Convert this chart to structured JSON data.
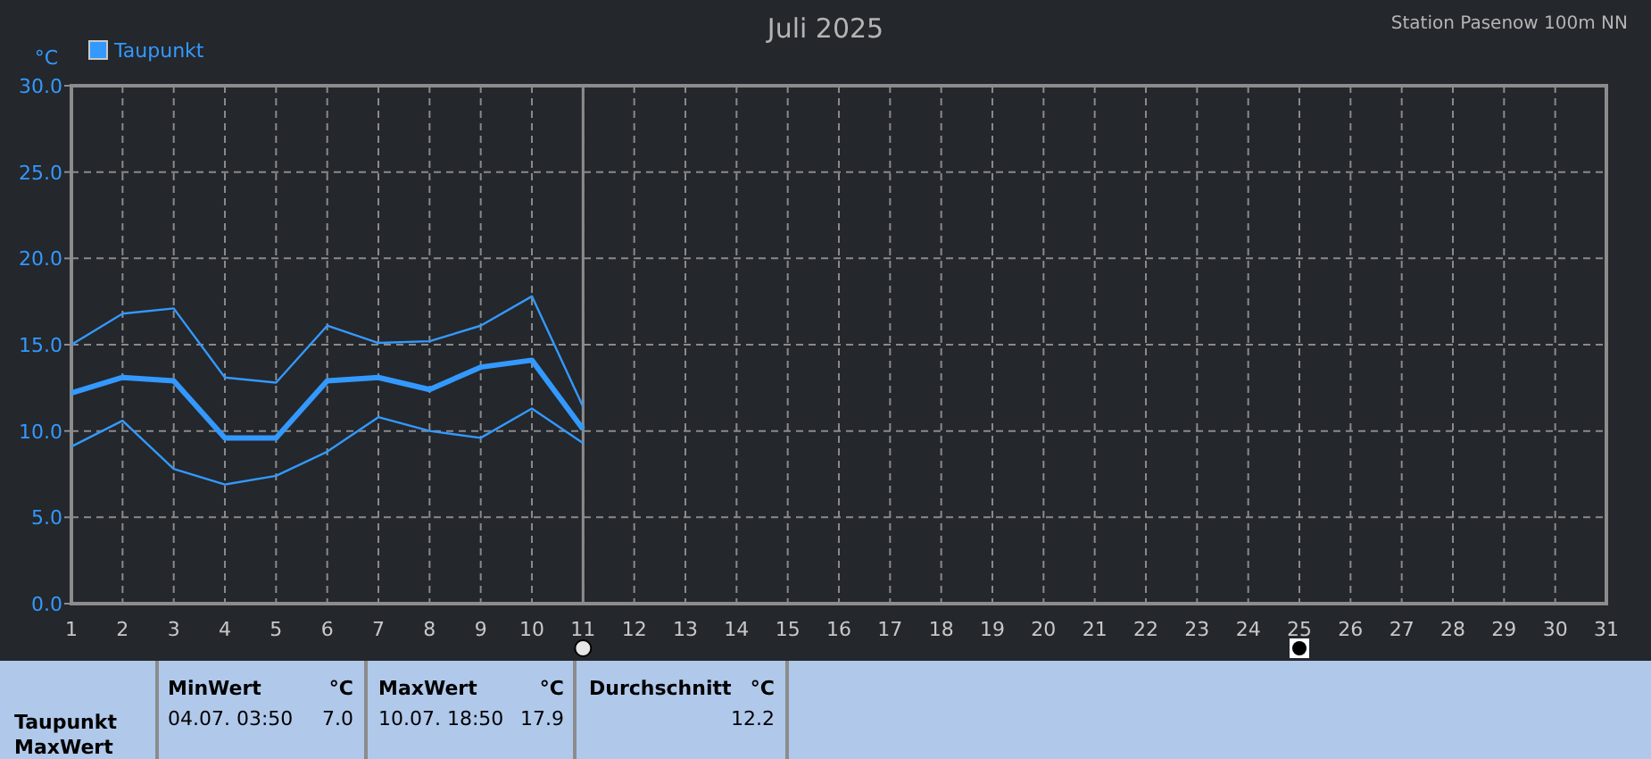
{
  "chart_data": {
    "type": "line",
    "title": "Juli 2025",
    "subtitle": "Station Pasenow 100m NN",
    "ylabel": "°C",
    "x": [
      1,
      2,
      3,
      4,
      5,
      6,
      7,
      8,
      9,
      10,
      11
    ],
    "series": [
      {
        "color": "#3399ff",
        "values": [
          15.0,
          16.8,
          17.1,
          13.1,
          12.8,
          16.1,
          15.1,
          15.2,
          16.1,
          17.8,
          11.4
        ]
      },
      {
        "name": "Taupunkt",
        "color": "#3399ff",
        "values": [
          12.2,
          13.1,
          12.9,
          9.6,
          9.6,
          12.9,
          13.1,
          12.4,
          13.7,
          14.1,
          10.1
        ]
      },
      {
        "color": "#3399ff",
        "values": [
          9.1,
          10.6,
          7.8,
          6.9,
          7.4,
          8.8,
          10.8,
          10.0,
          9.6,
          11.3,
          9.3
        ]
      }
    ],
    "xlim": [
      1,
      31
    ],
    "xticks": [
      1,
      2,
      3,
      4,
      5,
      6,
      7,
      8,
      9,
      10,
      11,
      12,
      13,
      14,
      15,
      16,
      17,
      18,
      19,
      20,
      21,
      22,
      23,
      24,
      25,
      26,
      27,
      28,
      29,
      30,
      31
    ],
    "ylim": [
      0,
      30
    ],
    "yticks": [
      {
        "value": 0,
        "label": "0.0"
      },
      {
        "value": 5,
        "label": "5.0"
      },
      {
        "value": 10,
        "label": "10.0"
      },
      {
        "value": 15,
        "label": "15.0"
      },
      {
        "value": 20,
        "label": "20.0"
      },
      {
        "value": 25,
        "label": "25.0"
      },
      {
        "value": 30,
        "label": "30.0"
      }
    ],
    "ref_lines": [
      {
        "axis": "x",
        "value": 11,
        "color": "#8c8c8c"
      }
    ],
    "grid": true,
    "legend": "top left",
    "marker": "none",
    "line_style": "solid",
    "annotations": [
      "Taupunkt\nMaxWert",
      "MinWert",
      "°C",
      "04.07.  03:50",
      "7.0",
      "MaxWert",
      "°C",
      "10.07.  18:50",
      "17.9",
      "Durchschnitt",
      "°C",
      "12.2"
    ]
  }
}
